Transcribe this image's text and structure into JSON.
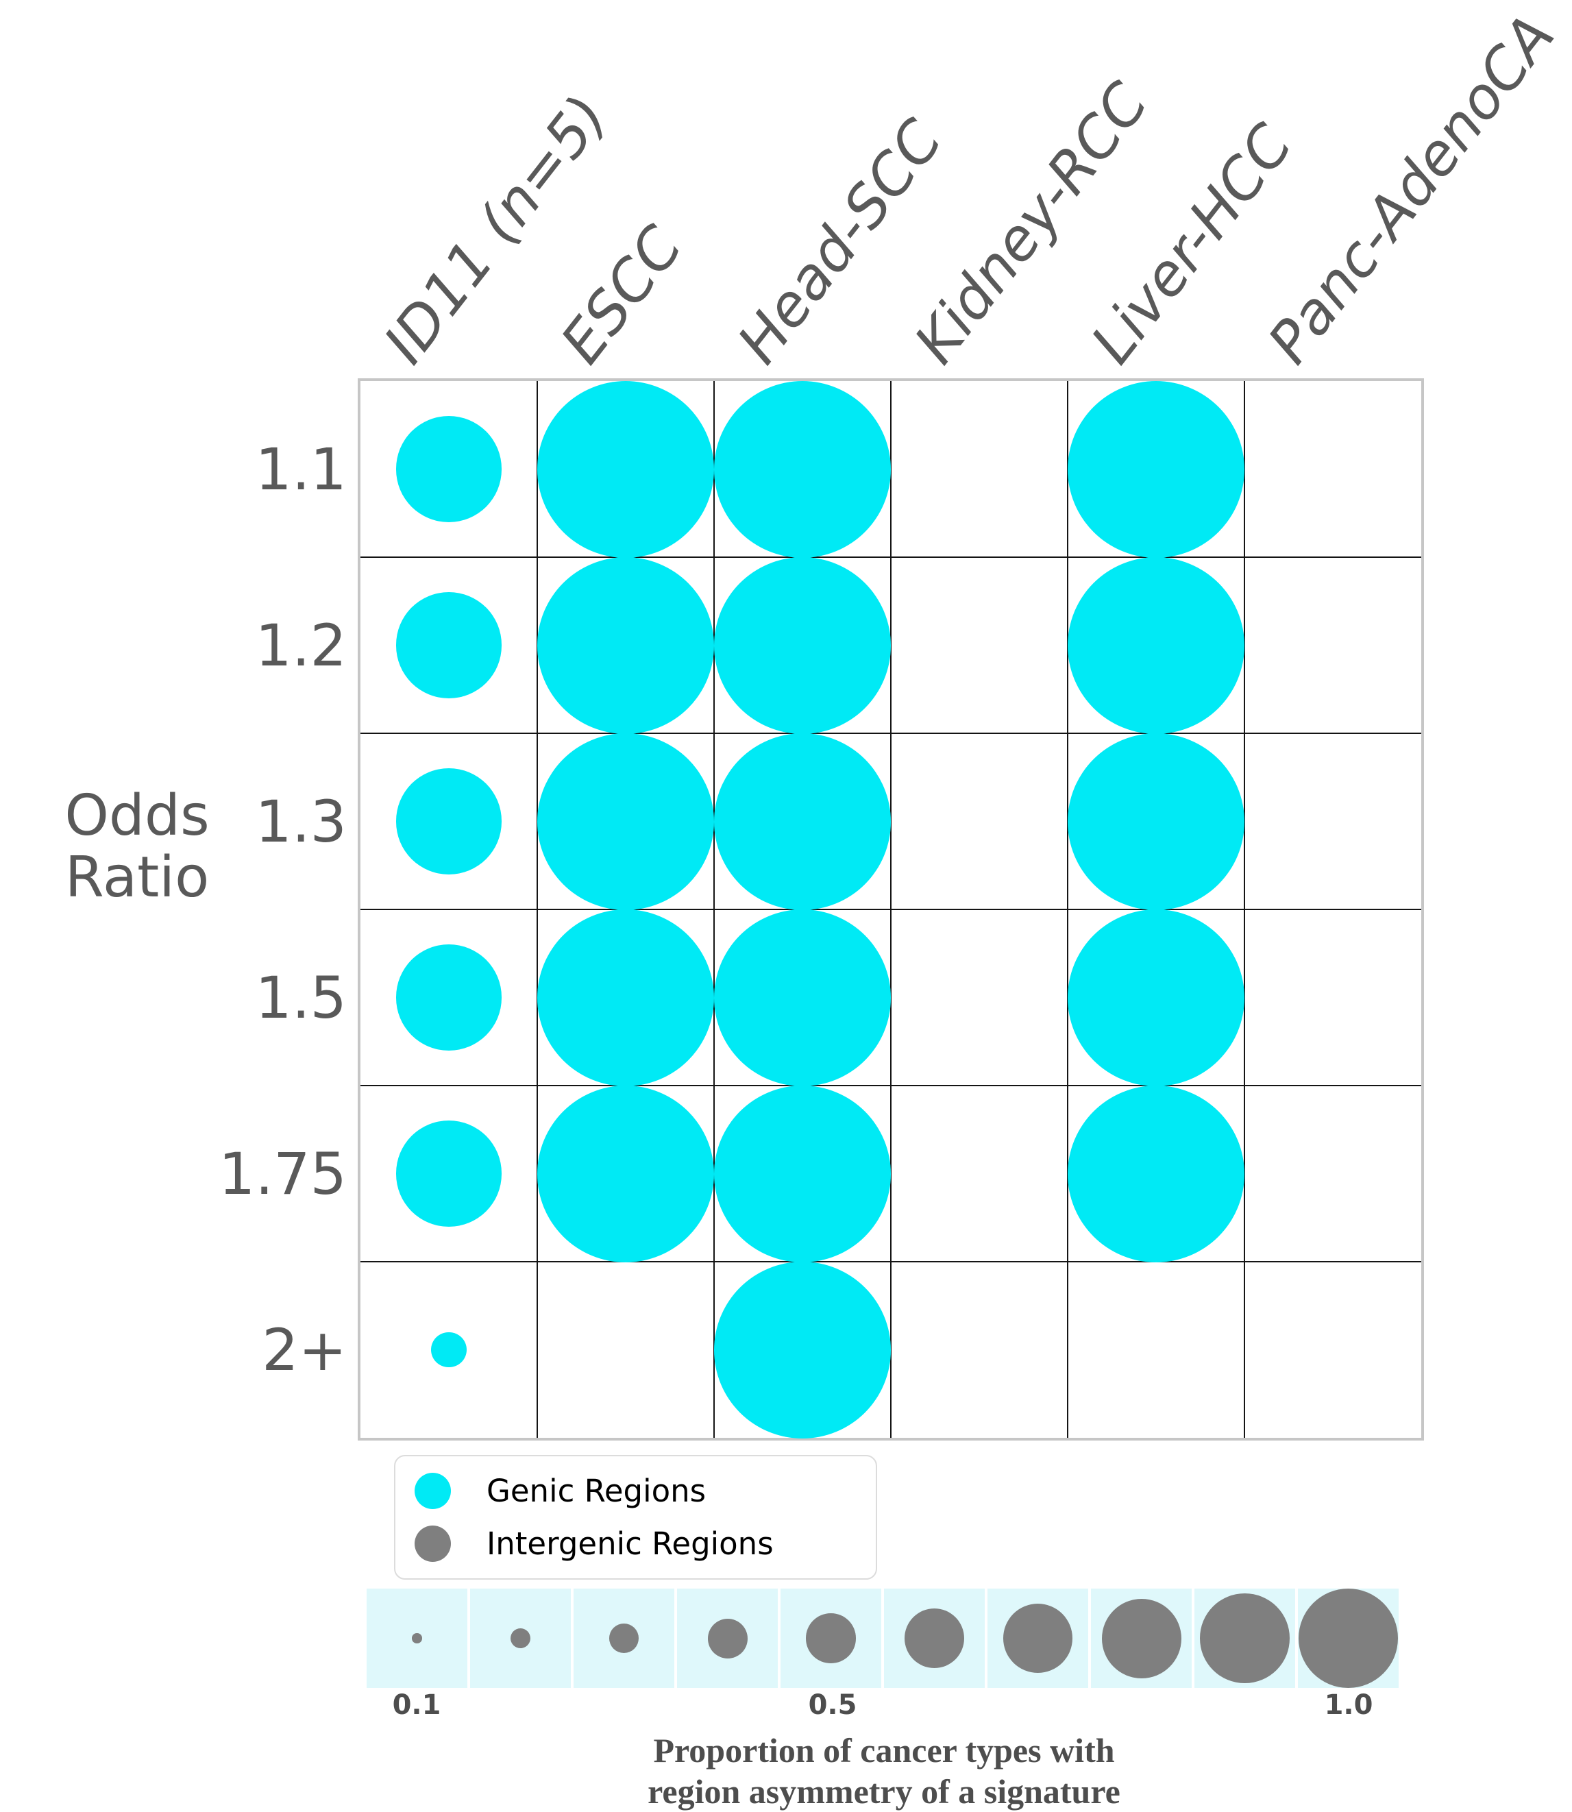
{
  "labels": {
    "ylabel_line1": "Odds",
    "ylabel_line2": "Ratio"
  },
  "chart_data": {
    "type": "bubble-matrix",
    "title": "",
    "ylabel": "Odds Ratio",
    "columns": [
      "ID11 (n=5)",
      "ESCC",
      "Head-SCC",
      "Kidney-RCC",
      "Liver-HCC",
      "Panc-AdenoCA"
    ],
    "rows": [
      "1.1",
      "1.2",
      "1.3",
      "1.5",
      "1.75",
      "2+"
    ],
    "bubble_size_meaning": "Proportion of cancer types with region asymmetry of a signature",
    "bubble_category": "Genic Regions",
    "values": [
      [
        0.6,
        1.0,
        1.0,
        0,
        1.0,
        0
      ],
      [
        0.6,
        1.0,
        1.0,
        0,
        1.0,
        0
      ],
      [
        0.6,
        1.0,
        1.0,
        0,
        1.0,
        0
      ],
      [
        0.6,
        1.0,
        1.0,
        0,
        1.0,
        0
      ],
      [
        0.6,
        1.0,
        1.0,
        0,
        1.0,
        0
      ],
      [
        0.2,
        0,
        1.0,
        0,
        0,
        0
      ]
    ],
    "grid": "on",
    "legend_position": "below-left"
  },
  "legend": {
    "items": [
      {
        "label": "Genic Regions",
        "color": "#00eaf5"
      },
      {
        "label": "Intergenic Regions",
        "color": "#7f7f7f"
      }
    ]
  },
  "size_legend": {
    "values": [
      0.1,
      0.2,
      0.3,
      0.4,
      0.5,
      0.6,
      0.7,
      0.8,
      0.9,
      1.0
    ],
    "tick_labels": [
      "0.1",
      "0.5",
      "1.0"
    ],
    "caption_line1": "Proportion of cancer types with",
    "caption_line2": "region asymmetry of a signature"
  },
  "colors": {
    "genic": "#00eaf5",
    "intergenic": "#7f7f7f",
    "axis_text": "#595959",
    "grid_line": "#141414",
    "outer_border": "#c6c6c6",
    "strip_background": "#dff8fb"
  }
}
